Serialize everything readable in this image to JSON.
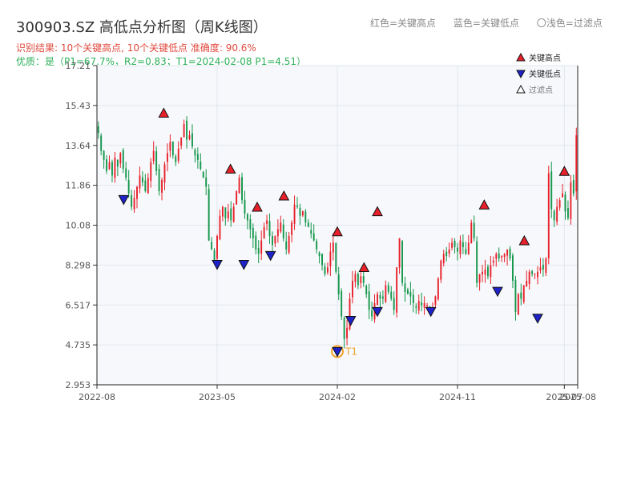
{
  "header": {
    "title": "300903.SZ 高低点分析图（周K线图）",
    "result_line": "识别结果: 10个关键高点, 10个关键低点   准确度: 90.6%",
    "quality_line": "优质：是（P1=67.7%，R2=0.83；T1=2024-02-08 P1=4.51）",
    "legend_red": "红色=关键高点",
    "legend_blue": "蓝色=关键低点",
    "legend_light": "〇浅色=过滤点"
  },
  "chart_data": {
    "type": "candlestick",
    "y_ticks": [
      "2.953",
      "4.735",
      "6.517",
      "8.298",
      "10.08",
      "11.86",
      "13.64",
      "15.43",
      "17.21"
    ],
    "ylim": [
      2.953,
      17.21
    ],
    "x_ticks": [
      "2022-08",
      "2023-05",
      "2024-02",
      "2024-11",
      "2025-07",
      "2025-08"
    ],
    "up_color": "#e8202a",
    "down_color": "#13964a",
    "legend": [
      {
        "label": "关键高点",
        "symbol": "up-triangle",
        "color": "#e8202a"
      },
      {
        "label": "关键低点",
        "symbol": "down-triangle",
        "color": "#1e22c8"
      },
      {
        "label": "过滤点",
        "symbol": "up-triangle",
        "color": "#ffffff"
      }
    ],
    "closes": [
      14.2,
      13.4,
      13.0,
      12.5,
      12.9,
      12.3,
      13.1,
      12.7,
      13.3,
      12.6,
      12.2,
      11.5,
      10.9,
      11.3,
      11.8,
      12.3,
      12.0,
      11.6,
      12.2,
      12.9,
      13.4,
      12.5,
      11.6,
      12.1,
      12.8,
      13.3,
      13.8,
      13.2,
      12.9,
      13.5,
      14.0,
      14.6,
      13.9,
      14.1,
      13.6,
      13.2,
      13.0,
      12.6,
      12.2,
      11.8,
      9.4,
      9.0,
      8.5,
      9.6,
      10.5,
      10.9,
      10.4,
      10.7,
      10.3,
      10.9,
      11.6,
      12.2,
      11.2,
      10.6,
      10.3,
      9.9,
      9.5,
      9.0,
      8.8,
      9.4,
      10.0,
      10.3,
      9.6,
      9.2,
      9.6,
      9.9,
      10.2,
      9.5,
      9.0,
      9.6,
      10.2,
      11.0,
      10.9,
      10.5,
      10.7,
      10.2,
      10.0,
      9.7,
      9.4,
      9.0,
      8.7,
      8.3,
      7.9,
      8.2,
      8.9,
      9.3,
      8.0,
      7.0,
      6.0,
      5.0,
      5.5,
      6.8,
      7.6,
      7.9,
      7.4,
      7.8,
      7.5,
      7.0,
      6.3,
      6.0,
      6.6,
      7.0,
      6.8,
      6.8,
      7.4,
      7.1,
      6.8,
      6.3,
      8.2,
      9.5,
      7.5,
      7.1,
      7.0,
      6.9,
      6.6,
      6.4,
      6.7,
      6.5,
      6.6,
      6.5,
      6.4,
      6.4,
      6.9,
      7.7,
      8.5,
      8.8,
      8.7,
      9.0,
      9.3,
      9.1,
      8.9,
      9.4,
      9.1,
      8.8,
      9.3,
      10.2,
      9.5,
      7.5,
      7.9,
      8.0,
      8.1,
      7.8,
      8.3,
      8.5,
      8.8,
      8.6,
      8.7,
      8.8,
      9.0,
      8.6,
      7.6,
      6.2,
      7.0,
      6.8,
      7.4,
      7.6,
      8.0,
      7.9,
      7.9,
      8.0,
      8.2,
      8.1,
      8.6,
      12.4,
      10.8,
      10.3,
      10.9,
      11.2,
      11.5,
      10.7,
      10.4,
      12.0,
      11.5,
      14.1
    ],
    "key_highs": [
      {
        "date": "2023-01",
        "value": 14.8
      },
      {
        "date": "2023-06",
        "value": 12.3
      },
      {
        "date": "2023-08",
        "value": 10.6
      },
      {
        "date": "2023-10",
        "value": 11.1
      },
      {
        "date": "2024-02",
        "value": 9.5
      },
      {
        "date": "2024-04",
        "value": 7.9
      },
      {
        "date": "2024-05",
        "value": 10.4
      },
      {
        "date": "2025-01",
        "value": 10.7
      },
      {
        "date": "2025-04",
        "value": 9.1
      },
      {
        "date": "2025-07",
        "value": 12.2
      }
    ],
    "key_lows": [
      {
        "date": "2022-10",
        "value": 11.3
      },
      {
        "date": "2023-05",
        "value": 8.4
      },
      {
        "date": "2023-07",
        "value": 8.4
      },
      {
        "date": "2023-09",
        "value": 8.8
      },
      {
        "date": "2024-02",
        "value": 4.51,
        "label": "T1"
      },
      {
        "date": "2024-03",
        "value": 5.9
      },
      {
        "date": "2024-05",
        "value": 6.3
      },
      {
        "date": "2024-09",
        "value": 6.3
      },
      {
        "date": "2025-02",
        "value": 7.2
      },
      {
        "date": "2025-05",
        "value": 6.0
      }
    ]
  }
}
